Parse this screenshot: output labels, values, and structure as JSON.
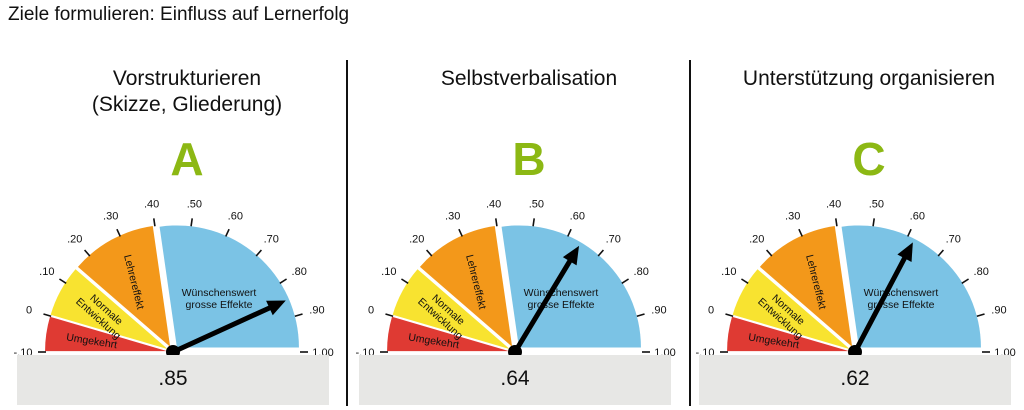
{
  "page": {
    "title": "Ziele formulieren: Einfluss auf Lernerfolg"
  },
  "gauge": {
    "scale_min": -0.1,
    "scale_max": 1.0,
    "tick_labels": [
      "-.10",
      "0",
      ".10",
      ".20",
      ".30",
      ".40",
      ".50",
      ".60",
      ".70",
      ".80",
      ".90",
      "1.00"
    ],
    "tick_values": [
      -0.1,
      0.0,
      0.1,
      0.2,
      0.3,
      0.4,
      0.5,
      0.6,
      0.7,
      0.8,
      0.9,
      1.0
    ],
    "segments": [
      {
        "label": "Umgekehrt",
        "from": -0.1,
        "to": 0.0,
        "color": "#df3a33"
      },
      {
        "label": "Normale Entwicklung",
        "from": 0.0,
        "to": 0.15,
        "color": "#f8e330"
      },
      {
        "label": "Lehrereffekt",
        "from": 0.15,
        "to": 0.4,
        "color": "#f3981a"
      },
      {
        "label": "Wünschenswert grosse Effekte",
        "from": 0.4,
        "to": 1.0,
        "color": "#7bc3e5"
      }
    ],
    "segment_text": {
      "umgekehrt": "Umgekehrt",
      "normale_1": "Normale",
      "normale_2": "Entwicklung",
      "lehrer": "Lehrereffekt",
      "wunsch_1": "Wünschenswert",
      "wunsch_2": "grosse Effekte"
    }
  },
  "chart_data": [
    {
      "type": "gauge",
      "title": "Vorstrukturieren (Skizze, Gliederung)",
      "title_line1": "Vorstrukturieren",
      "title_line2": "(Skizze, Gliederung)",
      "letter": "A",
      "value": 0.85,
      "value_label": ".85",
      "range": [
        -0.1,
        1.0
      ]
    },
    {
      "type": "gauge",
      "title": "Selbstverbalisation",
      "title_line1": "Selbstverbalisation",
      "title_line2": "",
      "letter": "B",
      "value": 0.64,
      "value_label": ".64",
      "range": [
        -0.1,
        1.0
      ]
    },
    {
      "type": "gauge",
      "title": "Unterstützung organisieren",
      "title_line1": "Unterstützung organisieren",
      "title_line2": "",
      "letter": "C",
      "value": 0.62,
      "value_label": ".62",
      "range": [
        -0.1,
        1.0
      ]
    }
  ]
}
